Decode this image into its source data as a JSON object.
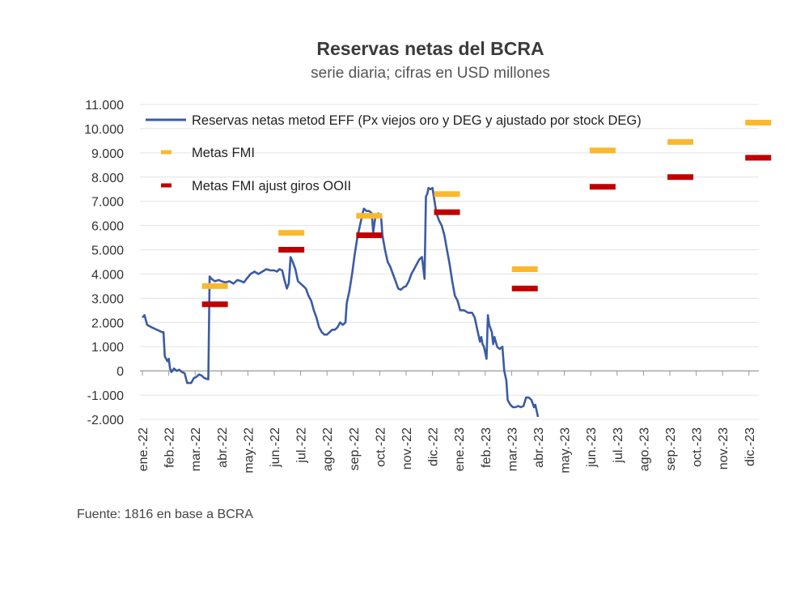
{
  "chart_data": {
    "type": "line",
    "title": "Reservas netas del BCRA",
    "subtitle": "serie diaria; cifras en USD millones",
    "source": "Fuente: 1816 en base a BCRA",
    "ylim": [
      -2000,
      11000
    ],
    "y_ticks": [
      {
        "value": 11000,
        "label": "11.000"
      },
      {
        "value": 10000,
        "label": "10.000"
      },
      {
        "value": 9000,
        "label": "9.000"
      },
      {
        "value": 8000,
        "label": "8.000"
      },
      {
        "value": 7000,
        "label": "7.000"
      },
      {
        "value": 6000,
        "label": "6.000"
      },
      {
        "value": 5000,
        "label": "5.000"
      },
      {
        "value": 4000,
        "label": "4.000"
      },
      {
        "value": 3000,
        "label": "3.000"
      },
      {
        "value": 2000,
        "label": "2.000"
      },
      {
        "value": 1000,
        "label": "1.000"
      },
      {
        "value": 0,
        "label": "0"
      },
      {
        "value": -1000,
        "label": "-1.000"
      },
      {
        "value": -2000,
        "label": "-2.000"
      }
    ],
    "x_ticks": [
      "ene.-22",
      "feb.-22",
      "mar.-22",
      "abr.-22",
      "may.-22",
      "jun.-22",
      "jul.-22",
      "ago.-22",
      "sep.-22",
      "oct.-22",
      "nov.-22",
      "dic.-22",
      "ene.-23",
      "feb.-23",
      "mar.-23",
      "abr.-23",
      "may.-23",
      "jun.-23",
      "jul.-23",
      "ago.-23",
      "sep.-23",
      "oct.-23",
      "nov.-23",
      "dic.-23"
    ],
    "x_units": "months since ene.-22",
    "series": [
      {
        "name": "Reservas netas metod EFF (Px viejos oro y DEG y ajustado por stock DEG)",
        "kind": "line",
        "color": "#3b5ba5",
        "points": [
          [
            0.0,
            2200
          ],
          [
            0.08,
            2300
          ],
          [
            0.18,
            1900
          ],
          [
            0.35,
            1800
          ],
          [
            0.55,
            1700
          ],
          [
            0.75,
            1600
          ],
          [
            0.8,
            1600
          ],
          [
            0.85,
            600
          ],
          [
            0.95,
            400
          ],
          [
            1.0,
            500
          ],
          [
            1.05,
            100
          ],
          [
            1.1,
            -50
          ],
          [
            1.2,
            100
          ],
          [
            1.3,
            0
          ],
          [
            1.4,
            50
          ],
          [
            1.5,
            -50
          ],
          [
            1.6,
            -100
          ],
          [
            1.7,
            -500
          ],
          [
            1.85,
            -500
          ],
          [
            1.95,
            -300
          ],
          [
            2.05,
            -250
          ],
          [
            2.15,
            -150
          ],
          [
            2.25,
            -200
          ],
          [
            2.35,
            -300
          ],
          [
            2.5,
            -350
          ],
          [
            2.55,
            3900
          ],
          [
            2.62,
            3800
          ],
          [
            2.75,
            3700
          ],
          [
            2.9,
            3750
          ],
          [
            3.0,
            3700
          ],
          [
            3.15,
            3650
          ],
          [
            3.3,
            3700
          ],
          [
            3.45,
            3600
          ],
          [
            3.6,
            3750
          ],
          [
            3.75,
            3700
          ],
          [
            3.85,
            3650
          ],
          [
            3.95,
            3800
          ],
          [
            4.1,
            4000
          ],
          [
            4.25,
            4100
          ],
          [
            4.4,
            4000
          ],
          [
            4.55,
            4100
          ],
          [
            4.7,
            4200
          ],
          [
            4.85,
            4150
          ],
          [
            5.0,
            4150
          ],
          [
            5.1,
            4100
          ],
          [
            5.2,
            4200
          ],
          [
            5.3,
            4150
          ],
          [
            5.4,
            3700
          ],
          [
            5.48,
            3400
          ],
          [
            5.55,
            3600
          ],
          [
            5.62,
            4700
          ],
          [
            5.7,
            4500
          ],
          [
            5.8,
            4200
          ],
          [
            5.9,
            3700
          ],
          [
            6.0,
            3600
          ],
          [
            6.1,
            3500
          ],
          [
            6.2,
            3400
          ],
          [
            6.3,
            3100
          ],
          [
            6.4,
            2900
          ],
          [
            6.5,
            2500
          ],
          [
            6.6,
            2200
          ],
          [
            6.7,
            1800
          ],
          [
            6.8,
            1600
          ],
          [
            6.9,
            1500
          ],
          [
            7.0,
            1500
          ],
          [
            7.1,
            1600
          ],
          [
            7.2,
            1700
          ],
          [
            7.3,
            1700
          ],
          [
            7.4,
            1800
          ],
          [
            7.5,
            2000
          ],
          [
            7.6,
            1900
          ],
          [
            7.7,
            2000
          ],
          [
            7.75,
            2800
          ],
          [
            7.85,
            3300
          ],
          [
            7.95,
            4000
          ],
          [
            8.05,
            4800
          ],
          [
            8.15,
            5500
          ],
          [
            8.25,
            6000
          ],
          [
            8.35,
            6500
          ],
          [
            8.4,
            6700
          ],
          [
            8.5,
            6600
          ],
          [
            8.6,
            6600
          ],
          [
            8.7,
            6500
          ],
          [
            8.75,
            5700
          ],
          [
            8.8,
            6100
          ],
          [
            8.85,
            6450
          ],
          [
            8.95,
            6500
          ],
          [
            9.05,
            6400
          ],
          [
            9.1,
            5600
          ],
          [
            9.2,
            5000
          ],
          [
            9.3,
            4500
          ],
          [
            9.4,
            4300
          ],
          [
            9.5,
            4000
          ],
          [
            9.6,
            3700
          ],
          [
            9.7,
            3400
          ],
          [
            9.8,
            3350
          ],
          [
            9.9,
            3450
          ],
          [
            10.0,
            3500
          ],
          [
            10.1,
            3700
          ],
          [
            10.2,
            4000
          ],
          [
            10.3,
            4200
          ],
          [
            10.4,
            4400
          ],
          [
            10.5,
            4600
          ],
          [
            10.6,
            4700
          ],
          [
            10.7,
            3800
          ],
          [
            10.75,
            7200
          ],
          [
            10.8,
            7300
          ],
          [
            10.85,
            7550
          ],
          [
            10.92,
            7500
          ],
          [
            11.0,
            7550
          ],
          [
            11.05,
            7200
          ],
          [
            11.15,
            6500
          ],
          [
            11.25,
            6200
          ],
          [
            11.35,
            6000
          ],
          [
            11.45,
            5600
          ],
          [
            11.55,
            5000
          ],
          [
            11.65,
            4400
          ],
          [
            11.75,
            3700
          ],
          [
            11.85,
            3100
          ],
          [
            11.95,
            2900
          ],
          [
            12.05,
            2500
          ],
          [
            12.2,
            2500
          ],
          [
            12.35,
            2400
          ],
          [
            12.5,
            2400
          ],
          [
            12.6,
            2200
          ],
          [
            12.7,
            1700
          ],
          [
            12.8,
            1200
          ],
          [
            12.85,
            1400
          ],
          [
            12.9,
            1100
          ],
          [
            12.95,
            1000
          ],
          [
            13.05,
            500
          ],
          [
            13.1,
            2300
          ],
          [
            13.15,
            1900
          ],
          [
            13.25,
            1600
          ],
          [
            13.3,
            1100
          ],
          [
            13.35,
            1400
          ],
          [
            13.45,
            1000
          ],
          [
            13.55,
            900
          ],
          [
            13.65,
            1000
          ],
          [
            13.72,
            0
          ],
          [
            13.8,
            -400
          ],
          [
            13.85,
            -1200
          ],
          [
            13.95,
            -1400
          ],
          [
            14.05,
            -1500
          ],
          [
            14.15,
            -1500
          ],
          [
            14.25,
            -1450
          ],
          [
            14.35,
            -1500
          ],
          [
            14.45,
            -1450
          ],
          [
            14.55,
            -1100
          ],
          [
            14.65,
            -1100
          ],
          [
            14.75,
            -1200
          ],
          [
            14.85,
            -1500
          ],
          [
            14.9,
            -1400
          ],
          [
            15.0,
            -1900
          ]
        ]
      },
      {
        "name": "Metas FMI",
        "kind": "target",
        "color": "#fbb82e",
        "points": [
          [
            2.75,
            3500
          ],
          [
            5.65,
            5700
          ],
          [
            8.6,
            6400
          ],
          [
            11.55,
            7300
          ],
          [
            14.5,
            4200
          ],
          [
            17.45,
            9100
          ],
          [
            20.4,
            9450
          ],
          [
            23.35,
            10250
          ]
        ]
      },
      {
        "name": "Metas FMI ajust giros OOII",
        "kind": "target",
        "color": "#c00000",
        "points": [
          [
            2.75,
            2750
          ],
          [
            5.65,
            5000
          ],
          [
            8.6,
            5600
          ],
          [
            11.55,
            6550
          ],
          [
            14.5,
            3400
          ],
          [
            17.45,
            7600
          ],
          [
            20.4,
            8000
          ],
          [
            23.35,
            8800
          ]
        ]
      }
    ]
  }
}
